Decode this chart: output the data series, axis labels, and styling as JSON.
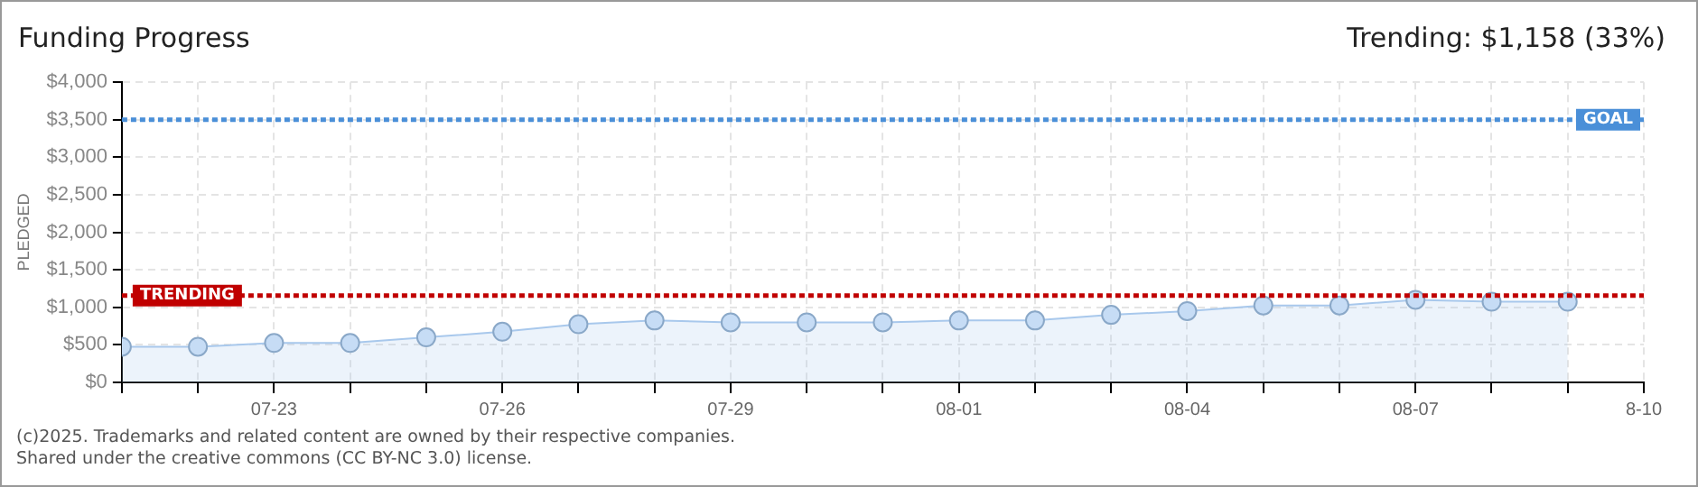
{
  "chart_data": {
    "type": "area",
    "title": "Funding Progress",
    "subtitle": "Trending: $1,158 (33%)",
    "ylabel": "PLEDGED",
    "x": [
      "--07-21",
      "--07-22",
      "--07-23",
      "--07-24",
      "--07-25",
      "--07-26",
      "--07-27",
      "--07-28",
      "--07-29",
      "--07-30",
      "--07-31",
      "--08-01",
      "--08-02",
      "--08-03",
      "--08-04",
      "--08-05",
      "--08-06",
      "--08-07",
      "--08-08",
      "--08-09"
    ],
    "series": [
      {
        "color": "#a8c8ec",
        "values": [
          475,
          475,
          525,
          525,
          600,
          675,
          775,
          825,
          800,
          800,
          800,
          825,
          825,
          900,
          950,
          1025,
          1025,
          1100,
          1075,
          1075
        ]
      }
    ],
    "xlim": [
      "--07-21",
      "--08-10"
    ],
    "xticks": [
      {
        "value": "--07-21",
        "label": null
      },
      {
        "value": "--07-22",
        "label": null
      },
      {
        "value": "--07-23",
        "label": "07-23"
      },
      {
        "value": "--07-24",
        "label": null
      },
      {
        "value": "--07-25",
        "label": null
      },
      {
        "value": "--07-26",
        "label": "07-26"
      },
      {
        "value": "--07-27",
        "label": null
      },
      {
        "value": "--07-28",
        "label": null
      },
      {
        "value": "--07-29",
        "label": "07-29"
      },
      {
        "value": "--07-30",
        "label": null
      },
      {
        "value": "--07-31",
        "label": null
      },
      {
        "value": "--08-01",
        "label": "08-01"
      },
      {
        "value": "--08-02",
        "label": null
      },
      {
        "value": "--08-03",
        "label": null
      },
      {
        "value": "--08-04",
        "label": "08-04"
      },
      {
        "value": "--08-05",
        "label": null
      },
      {
        "value": "--08-06",
        "label": null
      },
      {
        "value": "--08-07",
        "label": "08-07"
      },
      {
        "value": "--08-08",
        "label": null
      },
      {
        "value": "--08-09",
        "label": null
      },
      {
        "value": "--08-10",
        "label": "8-10"
      }
    ],
    "ylim": [
      0,
      4000
    ],
    "yticks": [
      {
        "value": 0,
        "label": "$0"
      },
      {
        "value": 500,
        "label": "$500"
      },
      {
        "value": 1000,
        "label": "$1,000"
      },
      {
        "value": 1500,
        "label": "$1,500"
      },
      {
        "value": 2000,
        "label": "$2,000"
      },
      {
        "value": 2500,
        "label": "$2,500"
      },
      {
        "value": 3000,
        "label": "$3,000"
      },
      {
        "value": 3500,
        "label": "$3,500"
      },
      {
        "value": 4000,
        "label": "$4,000"
      }
    ],
    "ref_lines": [
      {
        "axis": "y",
        "value": 3500,
        "label": "GOAL",
        "color": "#4a8fd8",
        "line_style": "dotted"
      },
      {
        "axis": "y",
        "value": 1158,
        "label": "TRENDING",
        "color": "#c00000",
        "line_style": "dotted"
      }
    ],
    "grid": true,
    "marker": "circle",
    "line_style": "solid",
    "annotations": [
      "(c)2025. Trademarks and related content are owned by their respective companies.",
      "Shared under the creative commons (CC BY-NC 3.0) license."
    ]
  }
}
